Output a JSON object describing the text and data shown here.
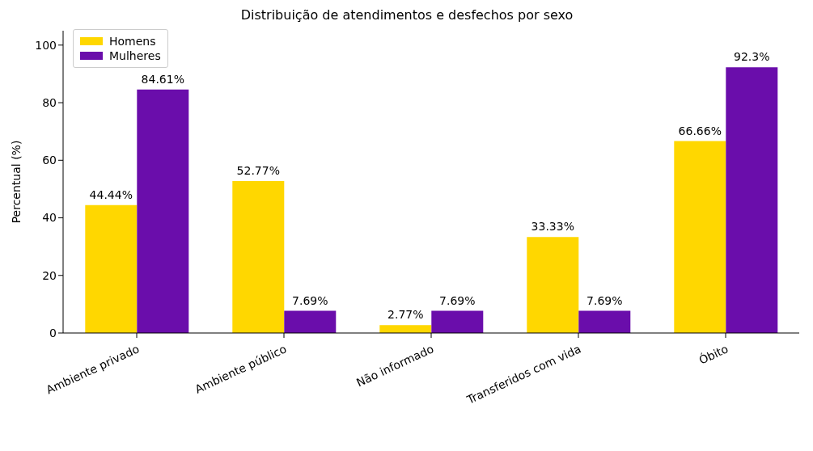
{
  "chart_data": {
    "type": "bar",
    "title": "Distribuição de atendimentos e desfechos por sexo",
    "ylabel": "Percentual (%)",
    "categories": [
      "Ambiente privado",
      "Ambiente público",
      "Não informado",
      "Transferidos com vida",
      "Óbito"
    ],
    "series": [
      {
        "name": "Homens",
        "color": "#ffd700",
        "values": [
          44.44,
          52.77,
          2.77,
          33.33,
          66.66
        ],
        "value_labels": [
          "44.44%",
          "52.77%",
          "2.77%",
          "33.33%",
          "66.66%"
        ]
      },
      {
        "name": "Mulheres",
        "color": "#6a0dab",
        "values": [
          84.61,
          7.69,
          7.69,
          7.69,
          92.3
        ],
        "value_labels": [
          "84.61%",
          "7.69%",
          "7.69%",
          "7.69%",
          "92.3%"
        ]
      }
    ],
    "ylim": [
      0,
      105
    ],
    "yticks": [
      0,
      20,
      40,
      60,
      80,
      100
    ],
    "grid": false,
    "legend": "top left"
  }
}
